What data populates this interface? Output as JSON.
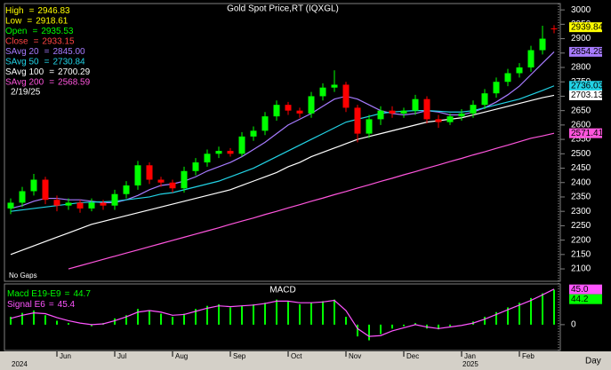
{
  "chart_data": [
    {
      "type": "candlestick",
      "title": "Gold Spot Price,RT (IQXGL)",
      "categories": [
        null,
        null,
        null,
        null,
        "Jun",
        null,
        null,
        null,
        null,
        "Jul",
        null,
        null,
        null,
        null,
        "Aug",
        null,
        null,
        null,
        null,
        "Sep",
        null,
        null,
        null,
        null,
        "Oct",
        null,
        null,
        null,
        null,
        "Nov",
        null,
        null,
        null,
        null,
        "Dec",
        null,
        null,
        null,
        null,
        "Jan",
        null,
        null,
        null,
        null,
        "Feb",
        null,
        null,
        null
      ],
      "years": [
        "2024",
        null,
        null,
        null,
        null,
        null,
        null,
        null,
        null,
        null,
        null,
        null,
        null,
        null,
        null,
        null,
        null,
        null,
        null,
        null,
        null,
        null,
        null,
        null,
        null,
        null,
        null,
        null,
        null,
        null,
        null,
        null,
        null,
        null,
        null,
        null,
        null,
        null,
        null,
        "2025",
        null,
        null,
        null,
        null,
        null,
        null,
        null,
        null
      ],
      "open": [
        2310,
        2330,
        2370,
        2410,
        2340,
        2320,
        2330,
        2310,
        2330,
        2320,
        2360,
        2390,
        2460,
        2410,
        2400,
        2380,
        2440,
        2470,
        2500,
        2510,
        2500,
        2560,
        2580,
        2630,
        2670,
        2650,
        2640,
        2700,
        2730,
        2740,
        2660,
        2570,
        2620,
        2650,
        2640,
        2650,
        2690,
        2620,
        2610,
        2630,
        2640,
        2670,
        2710,
        2750,
        2780,
        2800,
        2860,
        2935.53
      ],
      "high": [
        2345,
        2385,
        2430,
        2420,
        2355,
        2345,
        2340,
        2345,
        2340,
        2375,
        2405,
        2475,
        2470,
        2420,
        2410,
        2455,
        2485,
        2515,
        2525,
        2520,
        2575,
        2595,
        2645,
        2685,
        2680,
        2660,
        2715,
        2745,
        2790,
        2750,
        2670,
        2635,
        2665,
        2665,
        2660,
        2705,
        2700,
        2635,
        2640,
        2655,
        2685,
        2725,
        2765,
        2795,
        2815,
        2875,
        2945,
        2946.83
      ],
      "low": [
        2290,
        2315,
        2355,
        2325,
        2300,
        2305,
        2295,
        2300,
        2305,
        2305,
        2345,
        2375,
        2395,
        2385,
        2365,
        2365,
        2425,
        2455,
        2485,
        2490,
        2490,
        2545,
        2565,
        2615,
        2635,
        2625,
        2625,
        2685,
        2715,
        2645,
        2540,
        2555,
        2600,
        2625,
        2625,
        2635,
        2605,
        2590,
        2600,
        2615,
        2625,
        2655,
        2695,
        2735,
        2765,
        2785,
        2845,
        2918.61
      ],
      "close": [
        2330,
        2370,
        2410,
        2340,
        2320,
        2330,
        2310,
        2330,
        2320,
        2360,
        2390,
        2460,
        2410,
        2400,
        2380,
        2440,
        2470,
        2500,
        2510,
        2500,
        2560,
        2580,
        2630,
        2670,
        2650,
        2640,
        2700,
        2730,
        2740,
        2660,
        2570,
        2620,
        2650,
        2640,
        2650,
        2690,
        2620,
        2610,
        2630,
        2640,
        2670,
        2710,
        2750,
        2780,
        2800,
        2860,
        2900,
        2933.15
      ],
      "up_color": "#00ff00",
      "down_color": "#ff0000",
      "series": [
        {
          "name": "SAvg 20",
          "color": "#a77bff",
          "readout": {
            "value": 2845,
            "label": "2845.00"
          },
          "tag": 2854.28,
          "values": [
            2310,
            2320,
            2335,
            2345,
            2345,
            2340,
            2340,
            2335,
            2330,
            2330,
            2340,
            2355,
            2375,
            2390,
            2395,
            2405,
            2420,
            2440,
            2455,
            2470,
            2490,
            2515,
            2540,
            2570,
            2600,
            2620,
            2640,
            2665,
            2690,
            2700,
            2690,
            2670,
            2650,
            2640,
            2635,
            2640,
            2650,
            2645,
            2635,
            2635,
            2645,
            2660,
            2680,
            2705,
            2735,
            2775,
            2815,
            2854.28
          ]
        },
        {
          "name": "SAvg 50",
          "color": "#22d3e6",
          "readout": 2730.84,
          "tag": 2736.03,
          "values": [
            2300,
            2305,
            2310,
            2315,
            2320,
            2325,
            2330,
            2332,
            2333,
            2335,
            2340,
            2345,
            2350,
            2360,
            2365,
            2375,
            2385,
            2395,
            2405,
            2420,
            2435,
            2450,
            2470,
            2490,
            2510,
            2530,
            2550,
            2570,
            2590,
            2610,
            2620,
            2630,
            2640,
            2645,
            2648,
            2650,
            2650,
            2648,
            2645,
            2645,
            2650,
            2660,
            2670,
            2680,
            2690,
            2705,
            2720,
            2736.03
          ]
        },
        {
          "name": "SAvg 100",
          "color": "#ffffff",
          "readout": 2700.29,
          "tag": 2703.13,
          "values": [
            2150,
            2165,
            2180,
            2195,
            2210,
            2225,
            2240,
            2255,
            2265,
            2275,
            2285,
            2295,
            2305,
            2315,
            2325,
            2335,
            2345,
            2355,
            2365,
            2375,
            2390,
            2405,
            2420,
            2435,
            2455,
            2470,
            2490,
            2505,
            2520,
            2535,
            2550,
            2560,
            2570,
            2580,
            2590,
            2600,
            2610,
            2615,
            2620,
            2625,
            2635,
            2645,
            2655,
            2665,
            2675,
            2685,
            2695,
            2703.13
          ]
        },
        {
          "name": "SAvg 200",
          "color": "#ff55dd",
          "readout": 2568.59,
          "tag": 2571.41,
          "values": [
            null,
            null,
            null,
            null,
            null,
            2100,
            2111,
            2122,
            2133,
            2144,
            2155,
            2166,
            2177,
            2188,
            2199,
            2210,
            2221,
            2232,
            2243,
            2255,
            2266,
            2277,
            2289,
            2300,
            2312,
            2323,
            2335,
            2346,
            2358,
            2369,
            2381,
            2392,
            2404,
            2415,
            2427,
            2438,
            2450,
            2461,
            2473,
            2484,
            2496,
            2507,
            2519,
            2530,
            2542,
            2554,
            2562,
            2571.41
          ]
        }
      ],
      "readout": [
        {
          "name": "High",
          "value": 2946.83,
          "color": "#ffff00"
        },
        {
          "name": "Low",
          "value": 2918.61,
          "color": "#ffff00"
        },
        {
          "name": "Open",
          "value": 2935.53,
          "color": "#00ff00"
        },
        {
          "name": "Close",
          "value": 2933.15,
          "color": "#ff4444"
        }
      ],
      "readout_separator": "=",
      "readout_date": "2/19/25",
      "price_tag": {
        "value": 2939.84,
        "color": "#ffff00"
      },
      "ylim": [
        2057,
        3022
      ],
      "yticks": [
        2100,
        2150,
        2200,
        2250,
        2300,
        2350,
        2400,
        2450,
        2500,
        2550,
        2600,
        2650,
        2700,
        2750,
        2800,
        2850,
        2900,
        2950,
        3000
      ],
      "note": "No Gaps",
      "x_unit": "Day"
    },
    {
      "type": "macd",
      "title": "MACD",
      "series": [
        {
          "name": "Macd E19-E9",
          "color": "#00ff00",
          "readout": 44.7,
          "tag": {
            "value": 44.2,
            "label": "44.2"
          },
          "values": [
            10,
            15,
            18,
            12,
            5,
            2,
            0,
            -2,
            2,
            8,
            12,
            20,
            18,
            14,
            10,
            14,
            20,
            24,
            26,
            22,
            24,
            26,
            28,
            32,
            30,
            26,
            28,
            30,
            32,
            10,
            -15,
            -20,
            -12,
            -5,
            -2,
            2,
            -5,
            -6,
            -2,
            0,
            4,
            10,
            16,
            22,
            28,
            34,
            40,
            44.7
          ]
        },
        {
          "name": "Signal E6",
          "color": "#ff55ff",
          "readout": 45.4,
          "tag": {
            "value": 45,
            "label": "45.0"
          },
          "values": [
            8,
            12,
            15,
            14,
            9,
            5,
            2,
            0,
            1,
            5,
            10,
            16,
            18,
            16,
            12,
            13,
            17,
            21,
            24,
            23,
            24,
            25,
            27,
            30,
            30,
            28,
            28,
            29,
            31,
            18,
            -5,
            -15,
            -14,
            -8,
            -4,
            0,
            -3,
            -5,
            -3,
            -1,
            2,
            7,
            13,
            19,
            25,
            31,
            38,
            45.4
          ]
        }
      ],
      "ylim": [
        -33,
        52
      ],
      "yticks": [
        0
      ]
    }
  ]
}
